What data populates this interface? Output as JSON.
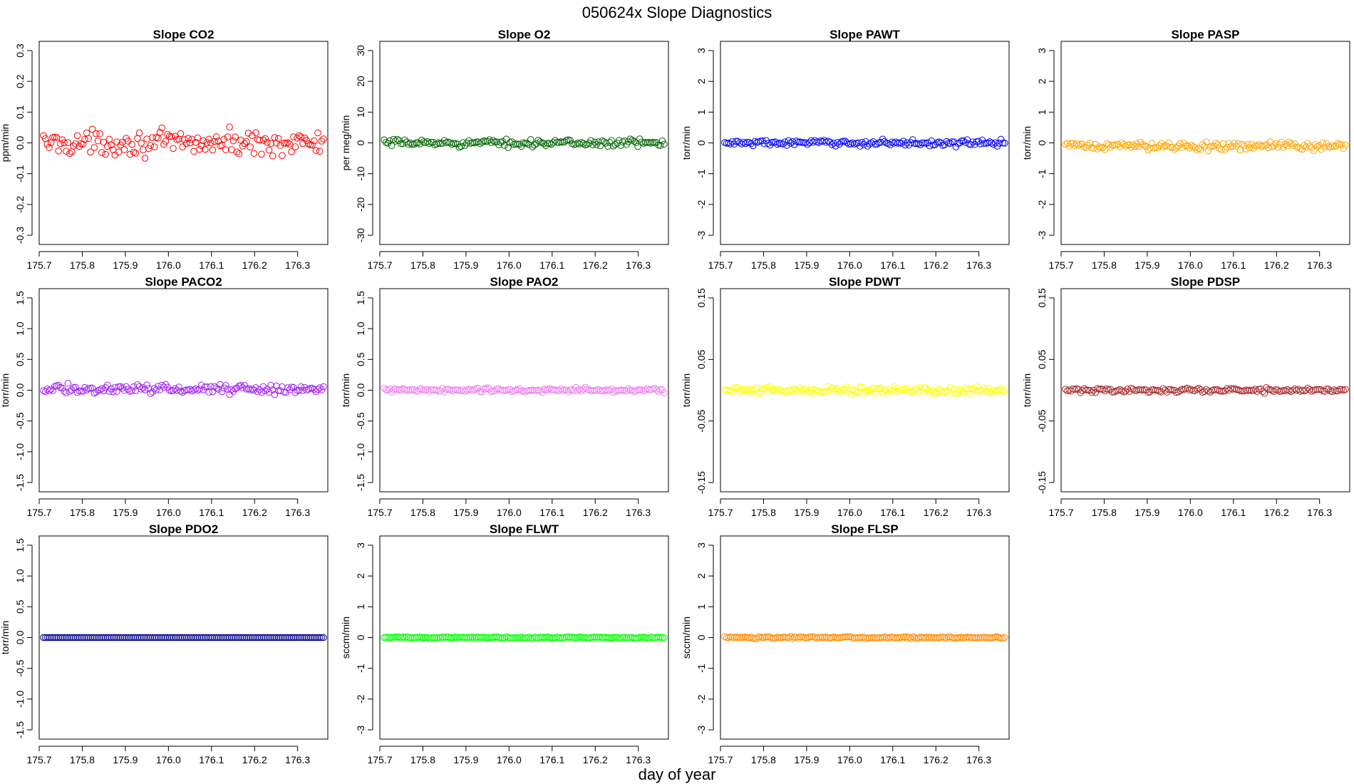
{
  "figure": {
    "title": "050624x   Slope Diagnostics",
    "xlabel": "day of year"
  },
  "chart_data": [
    {
      "type": "scatter",
      "title": "Slope CO2",
      "ylabel": "ppm/min",
      "color": "#ff0000",
      "xlim": [
        175.7,
        176.37
      ],
      "ylim": [
        -0.33,
        0.33
      ],
      "xticks": [
        "175.7",
        "175.8",
        "175.9",
        "176.0",
        "176.1",
        "176.2",
        "176.3"
      ],
      "yticks": [
        "-0.3",
        "-0.2",
        "-0.1",
        "0.0",
        "0.1",
        "0.2",
        "0.3"
      ],
      "x": [
        175.71,
        176.36
      ],
      "y_center": 0.0,
      "y_spread": 0.02,
      "y_max": 0.06,
      "y_min": -0.06,
      "n": 150
    },
    {
      "type": "scatter",
      "title": "Slope O2",
      "ylabel": "per meg/min",
      "color": "#006400",
      "xlim": [
        175.7,
        176.37
      ],
      "ylim": [
        -33,
        33
      ],
      "xticks": [
        "175.7",
        "175.8",
        "175.9",
        "176.0",
        "176.1",
        "176.2",
        "176.3"
      ],
      "yticks": [
        "-30",
        "-20",
        "-10",
        "0",
        "10",
        "20",
        "30"
      ],
      "x": [
        175.71,
        176.36
      ],
      "y_center": 0.0,
      "y_spread": 0.6,
      "y_max": 1.7,
      "y_min": -1.7,
      "n": 150
    },
    {
      "type": "scatter",
      "title": "Slope PAWT",
      "ylabel": "torr/min",
      "color": "#0000ff",
      "xlim": [
        175.7,
        176.37
      ],
      "ylim": [
        -3.3,
        3.3
      ],
      "xticks": [
        "175.7",
        "175.8",
        "175.9",
        "176.0",
        "176.1",
        "176.2",
        "176.3"
      ],
      "yticks": [
        "-3",
        "-2",
        "-1",
        "0",
        "1",
        "2",
        "3"
      ],
      "x": [
        175.71,
        176.36
      ],
      "y_center": 0.0,
      "y_spread": 0.05,
      "y_max": 0.15,
      "y_min": -0.15,
      "n": 150
    },
    {
      "type": "scatter",
      "title": "Slope PASP",
      "ylabel": "torr/min",
      "color": "#ffa500",
      "xlim": [
        175.7,
        176.37
      ],
      "ylim": [
        -3.3,
        3.3
      ],
      "xticks": [
        "175.7",
        "175.8",
        "175.9",
        "176.0",
        "176.1",
        "176.2",
        "176.3"
      ],
      "yticks": [
        "-3",
        "-2",
        "-1",
        "0",
        "1",
        "2",
        "3"
      ],
      "x": [
        175.71,
        176.36
      ],
      "y_center": -0.1,
      "y_spread": 0.07,
      "y_max": 0.15,
      "y_min": -0.35,
      "n": 150
    },
    {
      "type": "scatter",
      "title": "Slope PACO2",
      "ylabel": "torr/min",
      "color": "#a020f0",
      "xlim": [
        175.7,
        176.37
      ],
      "ylim": [
        -1.65,
        1.65
      ],
      "xticks": [
        "175.7",
        "175.8",
        "175.9",
        "176.0",
        "176.1",
        "176.2",
        "176.3"
      ],
      "yticks": [
        "-1.5",
        "-1.0",
        "-0.5",
        "0.0",
        "0.5",
        "1.0",
        "1.5"
      ],
      "x": [
        175.71,
        176.36
      ],
      "y_center": 0.02,
      "y_spread": 0.04,
      "y_max": 0.13,
      "y_min": -0.13,
      "n": 150
    },
    {
      "type": "scatter",
      "title": "Slope PAO2",
      "ylabel": "torr/min",
      "color": "#ee82ee",
      "xlim": [
        175.7,
        176.37
      ],
      "ylim": [
        -1.65,
        1.65
      ],
      "xticks": [
        "175.7",
        "175.8",
        "175.9",
        "176.0",
        "176.1",
        "176.2",
        "176.3"
      ],
      "yticks": [
        "-1.5",
        "-1.0",
        "-0.5",
        "0.0",
        "0.5",
        "1.0",
        "1.5"
      ],
      "x": [
        175.71,
        176.36
      ],
      "y_center": 0.0,
      "y_spread": 0.02,
      "y_max": 0.06,
      "y_min": -0.06,
      "n": 150
    },
    {
      "type": "scatter",
      "title": "Slope PDWT",
      "ylabel": "torr/min",
      "color": "#ffff00",
      "xlim": [
        175.7,
        176.37
      ],
      "ylim": [
        -0.165,
        0.165
      ],
      "xticks": [
        "175.7",
        "175.8",
        "175.9",
        "176.0",
        "176.1",
        "176.2",
        "176.3"
      ],
      "yticks": [
        "-0.15",
        "-0.05",
        "0.05",
        "0.15"
      ],
      "x": [
        175.71,
        176.36
      ],
      "y_center": 0.0,
      "y_spread": 0.003,
      "y_max": 0.01,
      "y_min": -0.015,
      "n": 150
    },
    {
      "type": "scatter",
      "title": "Slope PDSP",
      "ylabel": "torr/min",
      "color": "#a52a2a",
      "xlim": [
        175.7,
        176.37
      ],
      "ylim": [
        -0.165,
        0.165
      ],
      "xticks": [
        "175.7",
        "175.8",
        "175.9",
        "176.0",
        "176.1",
        "176.2",
        "176.3"
      ],
      "yticks": [
        "-0.15",
        "-0.05",
        "0.05",
        "0.15"
      ],
      "x": [
        175.71,
        176.36
      ],
      "y_center": 0.0,
      "y_spread": 0.002,
      "y_max": 0.005,
      "y_min": -0.005,
      "n": 150
    },
    {
      "type": "scatter",
      "title": "Slope PDO2",
      "ylabel": "torr/min",
      "color": "#00008b",
      "xlim": [
        175.7,
        176.37
      ],
      "ylim": [
        -1.65,
        1.65
      ],
      "xticks": [
        "175.7",
        "175.8",
        "175.9",
        "176.0",
        "176.1",
        "176.2",
        "176.3"
      ],
      "yticks": [
        "-1.5",
        "-1.0",
        "-0.5",
        "0.0",
        "0.5",
        "1.0",
        "1.5"
      ],
      "x": [
        175.71,
        176.36
      ],
      "y_center": 0.0,
      "y_spread": 0.0,
      "y_max": 0.0,
      "y_min": 0.0,
      "n": 150
    },
    {
      "type": "scatter",
      "title": "Slope FLWT",
      "ylabel": "sccm/min",
      "color": "#00ff00",
      "xlim": [
        175.7,
        176.37
      ],
      "ylim": [
        -3.3,
        3.3
      ],
      "xticks": [
        "175.7",
        "175.8",
        "175.9",
        "176.0",
        "176.1",
        "176.2",
        "176.3"
      ],
      "yticks": [
        "-3",
        "-2",
        "-1",
        "0",
        "1",
        "2",
        "3"
      ],
      "x": [
        175.71,
        176.36
      ],
      "y_center": 0.0,
      "y_spread": 0.015,
      "y_max": 0.06,
      "y_min": -0.06,
      "n": 150
    },
    {
      "type": "scatter",
      "title": "Slope FLSP",
      "ylabel": "sccm/min",
      "color": "#ff8c00",
      "xlim": [
        175.7,
        176.37
      ],
      "ylim": [
        -3.3,
        3.3
      ],
      "xticks": [
        "175.7",
        "175.8",
        "175.9",
        "176.0",
        "176.1",
        "176.2",
        "176.3"
      ],
      "yticks": [
        "-3",
        "-2",
        "-1",
        "0",
        "1",
        "2",
        "3"
      ],
      "x": [
        175.71,
        176.36
      ],
      "y_center": 0.0,
      "y_spread": 0.015,
      "y_max": 0.06,
      "y_min": -0.06,
      "n": 150
    }
  ]
}
